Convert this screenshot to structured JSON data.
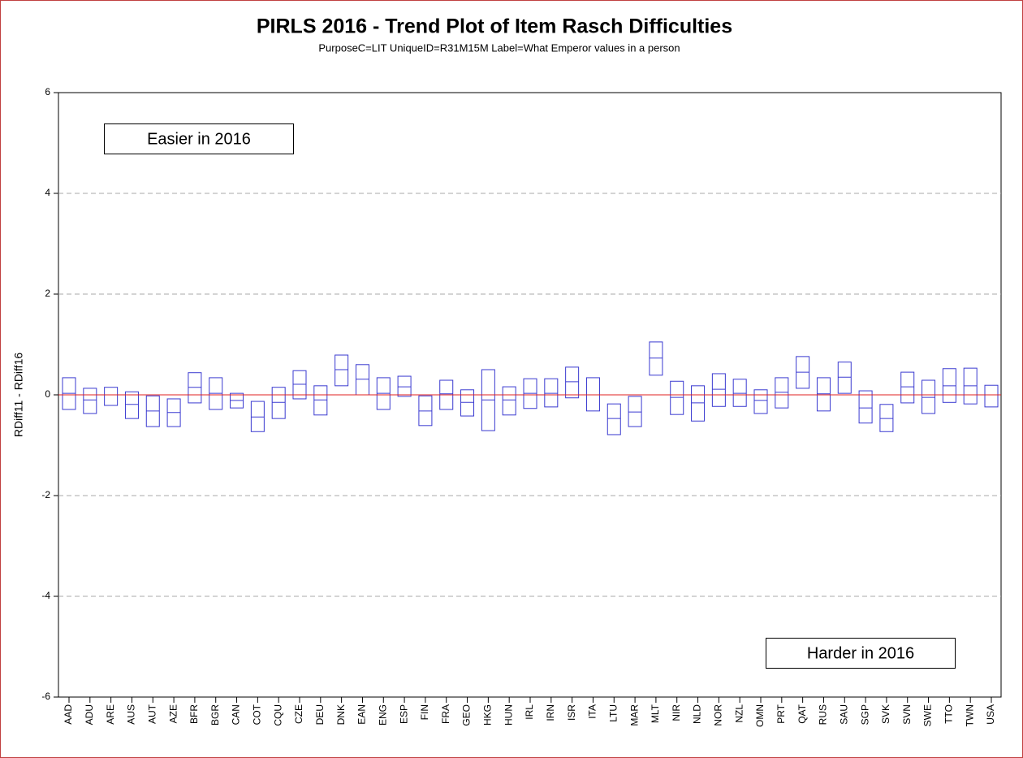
{
  "chart_data": {
    "type": "range-box",
    "title": "PIRLS 2016 - Trend Plot of Item Rasch Difficulties",
    "subtitle": "PurposeC=LIT UniqueID=R31M15M Label=What Emperor values in a person",
    "y_label": "RDiff11 - RDiff16",
    "annotations": [
      "Easier in 2016",
      "Harder in 2016"
    ],
    "categories": [
      "AAD",
      "ADU",
      "ARE",
      "AUS",
      "AUT",
      "AZE",
      "BFR",
      "BGR",
      "CAN",
      "COT",
      "CQU",
      "CZE",
      "DEU",
      "DNK",
      "EAN",
      "ENG",
      "ESP",
      "FIN",
      "FRA",
      "GEO",
      "HKG",
      "HUN",
      "IRL",
      "IRN",
      "ISR",
      "ITA",
      "LTU",
      "MAR",
      "MLT",
      "NIR",
      "NLD",
      "NOR",
      "NZL",
      "OMN",
      "PRT",
      "QAT",
      "RUS",
      "SAU",
      "SGP",
      "SVK",
      "SVN",
      "SWE",
      "TTO",
      "TWN",
      "USA"
    ],
    "upper": [
      0.34,
      0.13,
      0.15,
      0.06,
      -0.02,
      -0.08,
      0.44,
      0.34,
      0.03,
      -0.13,
      0.15,
      0.48,
      0.18,
      0.79,
      0.6,
      0.34,
      0.37,
      -0.02,
      0.29,
      0.1,
      0.5,
      0.16,
      0.32,
      0.32,
      0.55,
      0.34,
      -0.18,
      -0.03,
      1.05,
      0.27,
      0.18,
      0.42,
      0.31,
      0.1,
      0.34,
      0.76,
      0.34,
      0.65,
      0.08,
      -0.19,
      0.45,
      0.29,
      0.52,
      0.53,
      0.19
    ],
    "values": [
      0.03,
      -0.1,
      0,
      -0.19,
      -0.32,
      -0.35,
      0.15,
      0.03,
      -0.11,
      -0.44,
      -0.15,
      0.21,
      -0.1,
      0.5,
      0.31,
      0.03,
      0.16,
      -0.32,
      0.02,
      -0.15,
      -0.1,
      -0.1,
      0.03,
      0.03,
      0.26,
      0,
      -0.47,
      -0.34,
      0.73,
      -0.05,
      -0.16,
      0.11,
      0.03,
      -0.11,
      0.05,
      0.45,
      0.02,
      0.35,
      -0.26,
      -0.47,
      0.16,
      -0.05,
      0.18,
      0.18,
      0
    ],
    "lower": [
      -0.29,
      -0.37,
      -0.21,
      -0.47,
      -0.63,
      -0.63,
      -0.16,
      -0.29,
      -0.26,
      -0.73,
      -0.47,
      -0.08,
      -0.4,
      0.18,
      0,
      -0.29,
      -0.03,
      -0.61,
      -0.29,
      -0.42,
      -0.71,
      -0.4,
      -0.27,
      -0.24,
      -0.06,
      -0.32,
      -0.79,
      -0.63,
      0.39,
      -0.39,
      -0.52,
      -0.23,
      -0.23,
      -0.37,
      -0.26,
      0.13,
      -0.32,
      0.03,
      -0.56,
      -0.73,
      -0.16,
      -0.37,
      -0.15,
      -0.18,
      -0.24
    ],
    "color": "#3a3ad0",
    "reference_line": 0,
    "reference_color": "#e02020",
    "ylim": [
      -6,
      6
    ],
    "yticks": [
      -6,
      -4,
      -2,
      0,
      2,
      4,
      6
    ],
    "grid": true
  }
}
